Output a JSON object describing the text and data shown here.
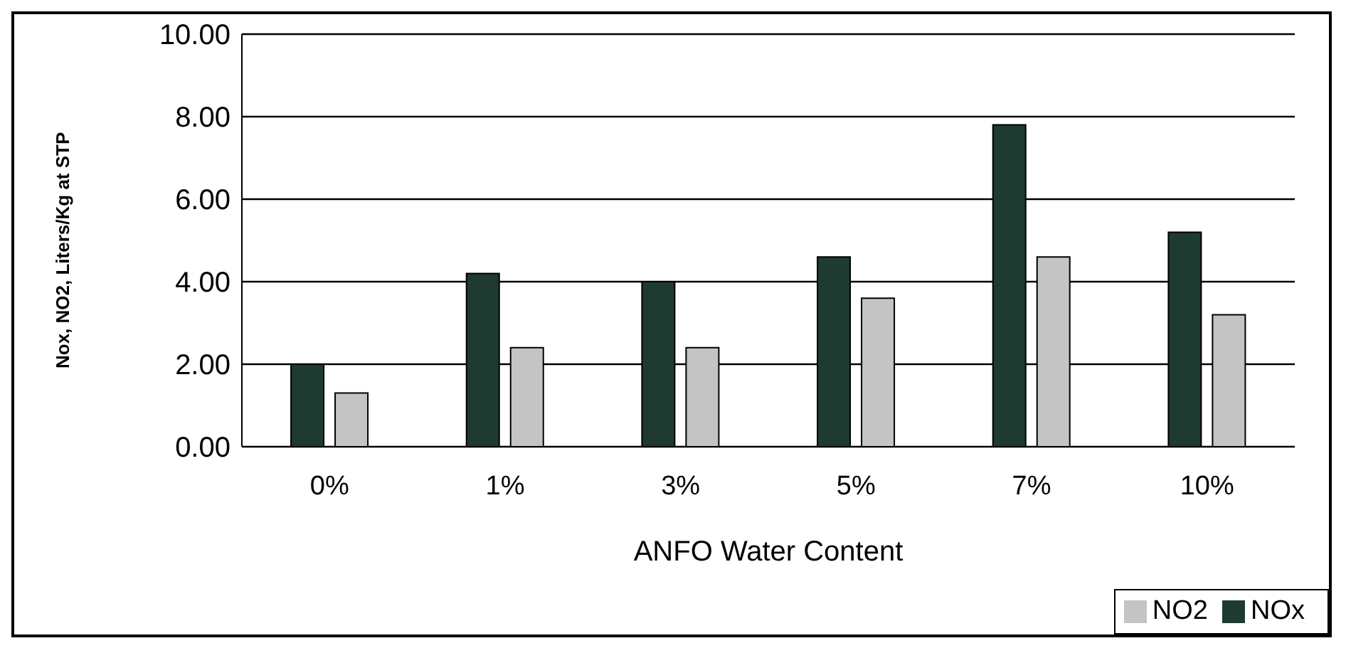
{
  "chart_data": {
    "type": "bar",
    "xlabel": "ANFO Water Content",
    "ylabel": "Nox, NO2, Liters/Kg at STP",
    "categories": [
      "0%",
      "1%",
      "3%",
      "5%",
      "7%",
      "10%"
    ],
    "series": [
      {
        "name": "NOx",
        "color": "#1f3a30",
        "values": [
          2.0,
          4.2,
          4.0,
          4.6,
          7.8,
          5.2
        ]
      },
      {
        "name": "NO2",
        "color": "#c4c4c4",
        "values": [
          1.3,
          2.4,
          2.4,
          3.6,
          4.6,
          3.2
        ]
      }
    ],
    "ylim": [
      0,
      10
    ],
    "yticks": [
      {
        "value": 0,
        "label": "0.00"
      },
      {
        "value": 2,
        "label": "2.00"
      },
      {
        "value": 4,
        "label": "4.00"
      },
      {
        "value": 6,
        "label": "6.00"
      },
      {
        "value": 8,
        "label": "8.00"
      },
      {
        "value": 10,
        "label": "10.00"
      }
    ],
    "grid": "y",
    "legend": "bottom right"
  }
}
